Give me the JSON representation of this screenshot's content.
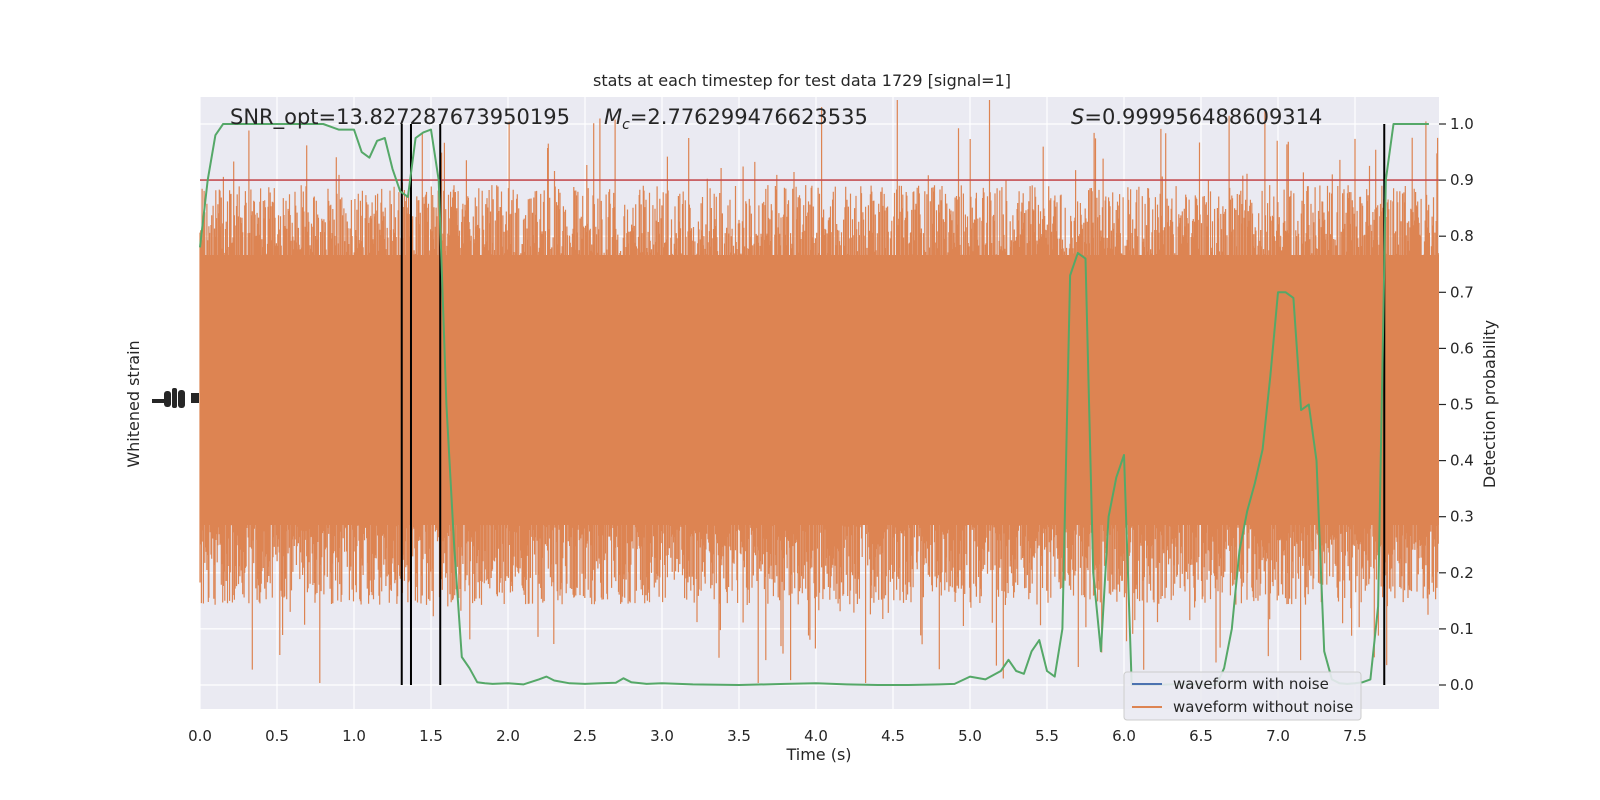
{
  "chart_data": {
    "type": "line",
    "title": "stats at each timestep for test data 1729 [signal=1]",
    "xlabel": "Time (s)",
    "ylabel_left": "Whitened strain",
    "ylabel_right": "Detection probability",
    "xlim": [
      0,
      8
    ],
    "ylim_right": [
      -0.05,
      1.05
    ],
    "x_ticks": [
      "0.0",
      "0.5",
      "1.0",
      "1.5",
      "2.0",
      "2.5",
      "3.0",
      "3.5",
      "4.0",
      "4.5",
      "5.0",
      "5.5",
      "6.0",
      "6.5",
      "7.0",
      "7.5"
    ],
    "y_ticks_right": [
      "0.0",
      "0.1",
      "0.2",
      "0.3",
      "0.4",
      "0.5",
      "0.6",
      "0.7",
      "0.8",
      "0.9",
      "1.0"
    ],
    "grid": true,
    "legend_position": "lower-right",
    "annotations": {
      "snr": "SNR_opt=13.827287673950195",
      "mc_symbol": "M",
      "mc_sub": "c",
      "mc_value": "=2.776299476623535",
      "s_symbol": "S",
      "s_value": "=0.999956488609314"
    },
    "threshold": {
      "value": 0.9,
      "color": "#c44e52"
    },
    "vertical_lines_x": [
      1.31,
      1.37,
      1.56,
      7.69
    ],
    "series": [
      {
        "name": "waveform with noise",
        "color": "#4c72b0",
        "kind": "strain"
      },
      {
        "name": "waveform without noise",
        "color": "#dd8452",
        "kind": "strain"
      },
      {
        "color": "#55a868",
        "kind": "probability",
        "x": [
          0.0,
          0.05,
          0.1,
          0.15,
          0.2,
          0.3,
          0.4,
          0.5,
          0.6,
          0.7,
          0.8,
          0.9,
          1.0,
          1.05,
          1.1,
          1.15,
          1.2,
          1.25,
          1.3,
          1.35,
          1.4,
          1.45,
          1.5,
          1.55,
          1.6,
          1.65,
          1.7,
          1.75,
          1.8,
          1.85,
          1.9,
          2.0,
          2.1,
          2.2,
          2.25,
          2.3,
          2.4,
          2.5,
          2.6,
          2.7,
          2.75,
          2.8,
          2.9,
          3.0,
          3.2,
          3.5,
          3.8,
          4.0,
          4.2,
          4.4,
          4.6,
          4.8,
          4.9,
          5.0,
          5.1,
          5.2,
          5.25,
          5.3,
          5.35,
          5.4,
          5.45,
          5.5,
          5.55,
          5.6,
          5.65,
          5.7,
          5.75,
          5.8,
          5.85,
          5.9,
          5.95,
          6.0,
          6.05,
          6.1,
          6.15,
          6.2,
          6.3,
          6.4,
          6.5,
          6.6,
          6.65,
          6.7,
          6.75,
          6.8,
          6.85,
          6.9,
          6.95,
          7.0,
          7.05,
          7.1,
          7.15,
          7.2,
          7.25,
          7.3,
          7.35,
          7.4,
          7.45,
          7.5,
          7.55,
          7.6,
          7.65,
          7.7,
          7.75,
          7.8,
          7.9,
          7.98
        ],
        "y": [
          0.78,
          0.9,
          0.98,
          1.0,
          1.0,
          1.0,
          1.0,
          1.0,
          1.0,
          1.0,
          1.0,
          0.99,
          0.99,
          0.95,
          0.94,
          0.97,
          0.975,
          0.92,
          0.88,
          0.87,
          0.975,
          0.985,
          0.99,
          0.9,
          0.5,
          0.25,
          0.05,
          0.03,
          0.005,
          0.003,
          0.002,
          0.003,
          0.001,
          0.01,
          0.015,
          0.008,
          0.003,
          0.002,
          0.003,
          0.004,
          0.012,
          0.005,
          0.002,
          0.003,
          0.001,
          0.0,
          0.002,
          0.003,
          0.001,
          0.0,
          0.0,
          0.001,
          0.002,
          0.015,
          0.01,
          0.025,
          0.045,
          0.025,
          0.02,
          0.06,
          0.08,
          0.025,
          0.015,
          0.1,
          0.73,
          0.77,
          0.76,
          0.2,
          0.06,
          0.3,
          0.37,
          0.41,
          0.0,
          0.0,
          0.0,
          0.0,
          0.001,
          0.002,
          0.001,
          0.0,
          0.03,
          0.1,
          0.24,
          0.31,
          0.36,
          0.42,
          0.55,
          0.7,
          0.7,
          0.69,
          0.49,
          0.5,
          0.4,
          0.06,
          0.01,
          0.003,
          0.002,
          0.003,
          0.005,
          0.01,
          0.14,
          0.9,
          1.0,
          1.0,
          1.0,
          1.0
        ]
      }
    ]
  }
}
